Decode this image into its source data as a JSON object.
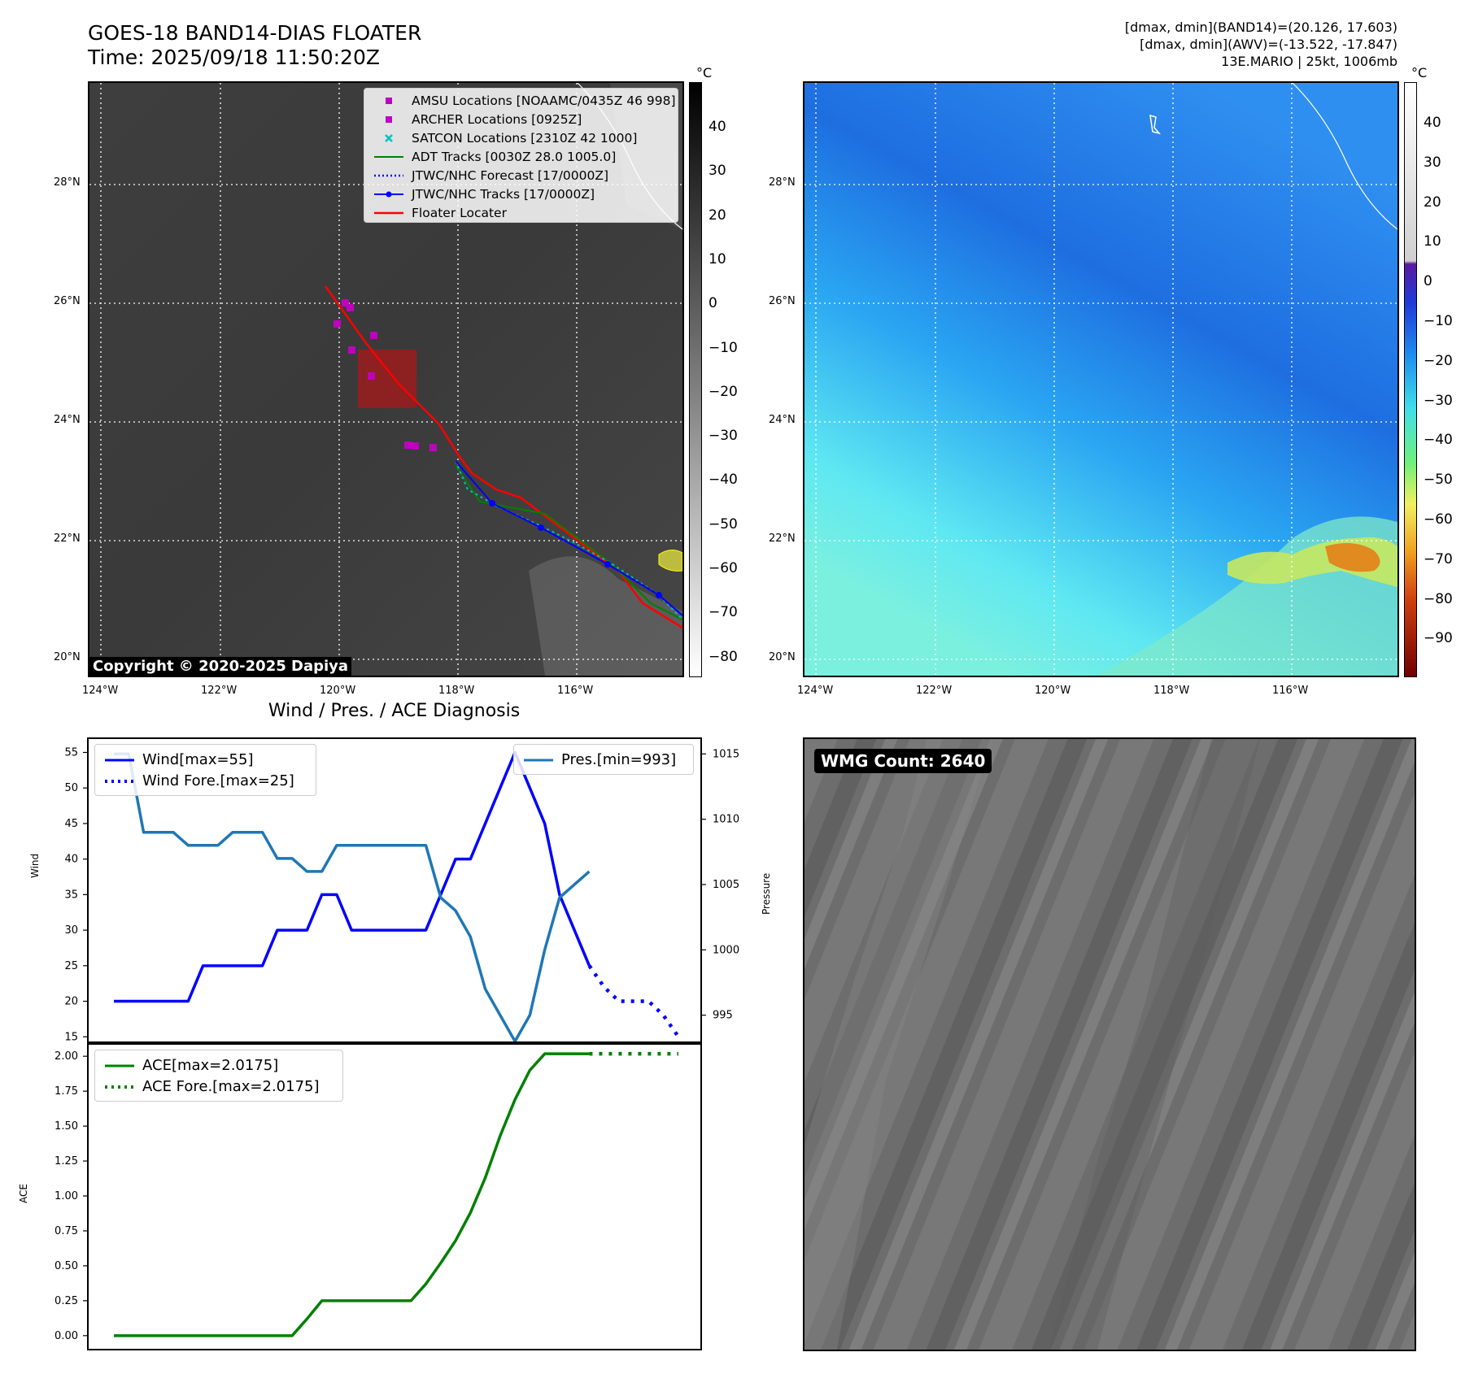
{
  "header": {
    "title_line1": "GOES-18 BAND14-DIAS FLOATER",
    "title_line2": "Time: 2025/09/18 11:50:20Z",
    "info_line1": "[dmax, dmin](BAND14)=(20.126, 17.603)",
    "info_line2": "[dmax, dmin](AWV)=(-13.522, -17.847)",
    "info_line3": "13E.MARIO | 25kt, 1006mb"
  },
  "map_left": {
    "colorbar_unit": "°C",
    "colorbar_ticks": [
      "40",
      "30",
      "20",
      "10",
      "0",
      "−10",
      "−20",
      "−30",
      "−40",
      "−50",
      "−60",
      "−70",
      "−80"
    ],
    "lat_labels": [
      "28°N",
      "26°N",
      "24°N",
      "22°N",
      "20°N"
    ],
    "lon_labels": [
      "124°W",
      "122°W",
      "120°W",
      "118°W",
      "116°W"
    ],
    "copyright": "Copyright © 2020-2025 Dapiya",
    "legend": [
      {
        "label": "AMSU Locations [NOAAMC/0435Z 46 998]",
        "symbol": "square",
        "color": "#bf00bf"
      },
      {
        "label": "ARCHER Locations [0925Z]",
        "symbol": "square",
        "color": "#bf00bf"
      },
      {
        "label": "SATCON Locations [2310Z 42 1000]",
        "symbol": "x",
        "color": "#00bfbf"
      },
      {
        "label": "ADT Tracks [0030Z 28.0 1005.0]",
        "symbol": "line",
        "color": "#008000"
      },
      {
        "label": "JTWC/NHC Forecast [17/0000Z]",
        "symbol": "dotted",
        "color": "#0000ff"
      },
      {
        "label": "JTWC/NHC Tracks [17/0000Z]",
        "symbol": "line-dot",
        "color": "#0000ff"
      },
      {
        "label": "Floater Locater",
        "symbol": "line",
        "color": "#ff0000"
      }
    ]
  },
  "map_right": {
    "colorbar_unit": "°C",
    "colorbar_ticks": [
      "40",
      "30",
      "20",
      "10",
      "0",
      "−10",
      "−20",
      "−30",
      "−40",
      "−50",
      "−60",
      "−70",
      "−80",
      "−90"
    ],
    "lat_labels": [
      "28°N",
      "26°N",
      "24°N",
      "22°N",
      "20°N"
    ],
    "lon_labels": [
      "124°W",
      "122°W",
      "120°W",
      "118°W",
      "116°W"
    ]
  },
  "diagnosis": {
    "title": "Wind / Pres. / ACE Diagnosis",
    "wind_ylabel": "Wind",
    "pres_ylabel": "Pressure",
    "ace_ylabel": "ACE",
    "legend_wind": "Wind[max=55]",
    "legend_wind_fore": "Wind Fore.[max=25]",
    "legend_pres": "Pres.[min=993]",
    "legend_ace": "ACE[max=2.0175]",
    "legend_ace_fore": "ACE Fore.[max=2.0175]"
  },
  "wmg": {
    "label": "WMG Count: 2640"
  },
  "chart_data": [
    {
      "type": "line",
      "title": "Wind / Pres. / ACE Diagnosis",
      "ylabel": "Wind",
      "ylim": [
        14,
        57
      ],
      "yticks": [
        15,
        20,
        25,
        30,
        35,
        40,
        45,
        50,
        55
      ],
      "series": [
        {
          "name": "Wind[max=55]",
          "color": "#0000ff",
          "style": "solid",
          "x": [
            0,
            1,
            2,
            3,
            4,
            5,
            6,
            7,
            8,
            9,
            10,
            11,
            12,
            13,
            14,
            15,
            16,
            17,
            18,
            19,
            20,
            21,
            22,
            23,
            24,
            25,
            26,
            27,
            28,
            29,
            30,
            31,
            32
          ],
          "y": [
            20,
            20,
            20,
            20,
            20,
            20,
            25,
            25,
            25,
            25,
            25,
            30,
            30,
            30,
            35,
            35,
            30,
            30,
            30,
            30,
            30,
            30,
            35,
            40,
            40,
            45,
            50,
            55,
            50,
            45,
            35,
            30,
            25
          ]
        },
        {
          "name": "Wind Fore.[max=25]",
          "color": "#0000ff",
          "style": "dotted",
          "x": [
            32,
            33,
            34,
            35,
            36,
            37,
            38
          ],
          "y": [
            25,
            22,
            20,
            20,
            20,
            18,
            15
          ]
        }
      ]
    },
    {
      "type": "line",
      "ylabel": "Pressure",
      "ylim": [
        992.8,
        1016.2
      ],
      "yticks": [
        995,
        1000,
        1005,
        1010,
        1015
      ],
      "series": [
        {
          "name": "Pres.[min=993]",
          "color": "#1f77b4",
          "style": "solid",
          "x": [
            0,
            1,
            2,
            3,
            4,
            5,
            6,
            7,
            8,
            9,
            10,
            11,
            12,
            13,
            14,
            15,
            16,
            17,
            18,
            19,
            20,
            21,
            22,
            23,
            24,
            25,
            26,
            27,
            28,
            29,
            30,
            31,
            32
          ],
          "y": [
            1015,
            1015,
            1009,
            1009,
            1009,
            1008,
            1008,
            1008,
            1009,
            1009,
            1009,
            1007,
            1007,
            1006,
            1006,
            1008,
            1008,
            1008,
            1008,
            1008,
            1008,
            1008,
            1004,
            1003,
            1001,
            997,
            995,
            993,
            995,
            1000,
            1004,
            1005,
            1006
          ]
        }
      ]
    },
    {
      "type": "line",
      "ylabel": "ACE",
      "ylim": [
        -0.1,
        2.1
      ],
      "yticks": [
        0,
        0.25,
        0.5,
        0.75,
        1.0,
        1.25,
        1.5,
        1.75,
        2.0
      ],
      "series": [
        {
          "name": "ACE[max=2.0175]",
          "color": "#008000",
          "style": "solid",
          "x": [
            0,
            1,
            2,
            3,
            4,
            5,
            6,
            7,
            8,
            9,
            10,
            11,
            12,
            13,
            14,
            15,
            16,
            17,
            18,
            19,
            20,
            21,
            22,
            23,
            24,
            25,
            26,
            27,
            28,
            29,
            30,
            31,
            32
          ],
          "y": [
            0,
            0,
            0,
            0,
            0,
            0,
            0,
            0,
            0,
            0,
            0,
            0,
            0,
            0.12,
            0.25,
            0.25,
            0.25,
            0.25,
            0.25,
            0.25,
            0.25,
            0.37,
            0.52,
            0.68,
            0.88,
            1.13,
            1.43,
            1.69,
            1.9,
            2.0175,
            2.0175,
            2.0175,
            2.0175
          ]
        },
        {
          "name": "ACE Fore.[max=2.0175]",
          "color": "#008000",
          "style": "dotted",
          "x": [
            32,
            33,
            34,
            35,
            36,
            37,
            38
          ],
          "y": [
            2.0175,
            2.0175,
            2.0175,
            2.0175,
            2.0175,
            2.0175,
            2.0175
          ]
        }
      ]
    }
  ]
}
